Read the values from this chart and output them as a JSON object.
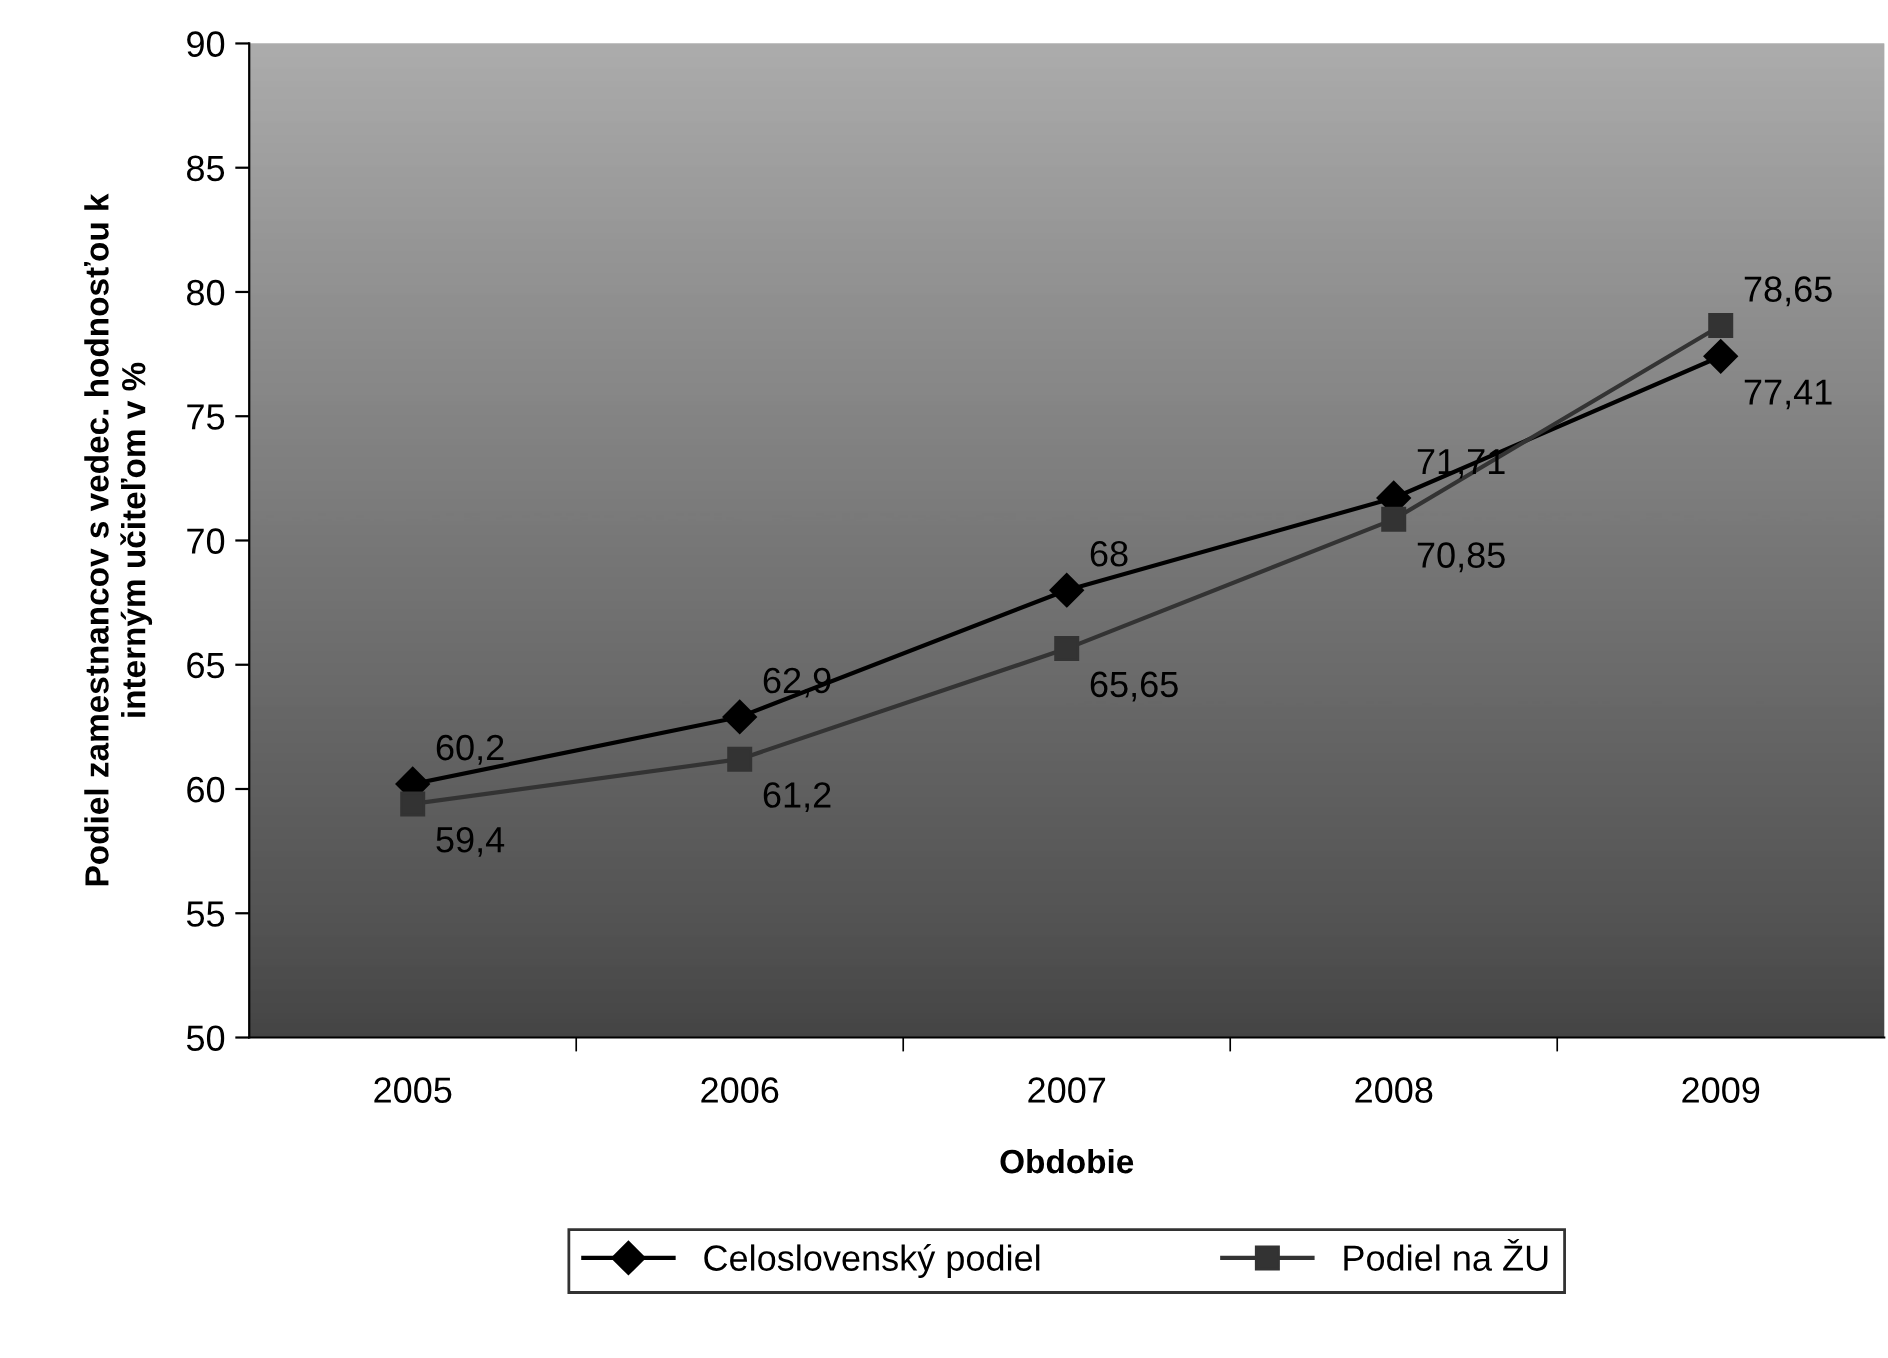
{
  "chart_data": {
    "type": "line",
    "xlabel": "Obdobie",
    "ylabel": "Podiel zamestnancov s vedec. hodnosťou k\ninterným učiteľom v %",
    "categories": [
      "2005",
      "2006",
      "2007",
      "2008",
      "2009"
    ],
    "series": [
      {
        "name": "Celoslovenský podiel",
        "color": "#000000",
        "marker": "diamond",
        "values": [
          60.2,
          62.9,
          68,
          71.71,
          77.41
        ],
        "value_labels": [
          "60,2",
          "62,9",
          "68",
          "71,71",
          "77,41"
        ]
      },
      {
        "name": "Podiel na ŽU",
        "color": "#333333",
        "marker": "square",
        "values": [
          59.4,
          61.2,
          65.65,
          70.85,
          78.65
        ],
        "value_labels": [
          "59,4",
          "61,2",
          "65,65",
          "70,85",
          "78,65"
        ]
      }
    ],
    "ylim": [
      50,
      90
    ],
    "yticks": [
      50,
      55,
      60,
      65,
      70,
      75,
      80,
      85,
      90
    ],
    "grid": false,
    "legend": "bottom",
    "line_style": "solid"
  }
}
